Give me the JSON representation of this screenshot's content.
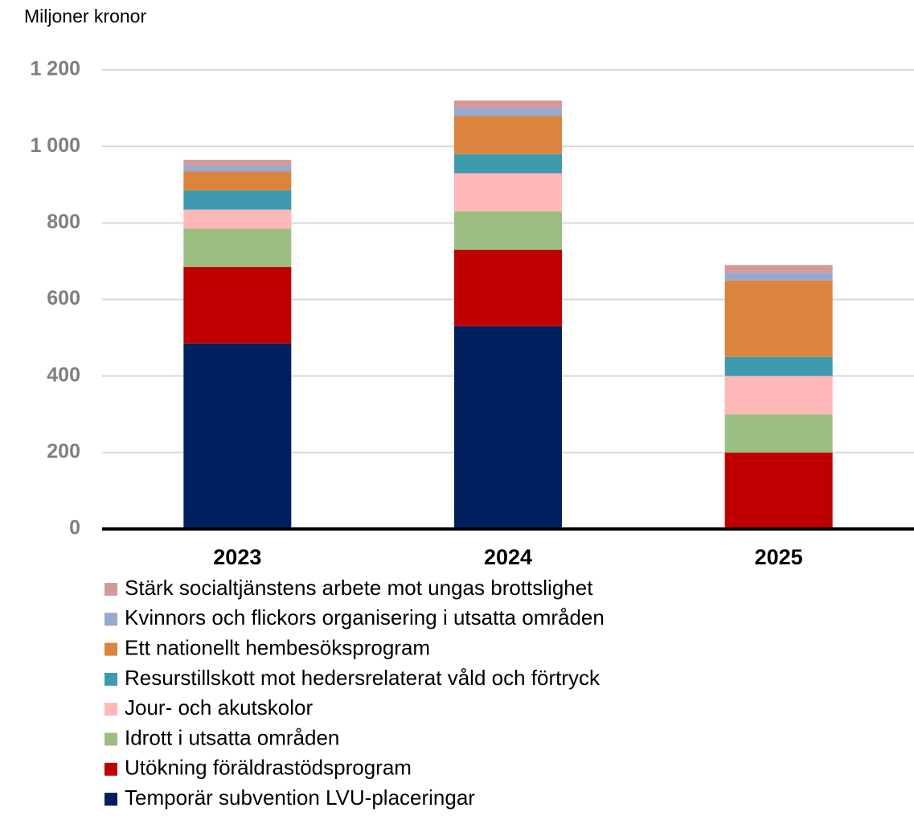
{
  "chart_data": {
    "type": "stacked_bar",
    "y_axis_label": "Miljoner kronor",
    "categories": [
      "2023",
      "2024",
      "2025"
    ],
    "series": [
      {
        "name": "Temporär subvention LVU-placeringar",
        "color": "#002060",
        "values": [
          485,
          530,
          0
        ]
      },
      {
        "name": "Utökning föräldrastödsprogram",
        "color": "#c00000",
        "values": [
          200,
          200,
          200
        ]
      },
      {
        "name": "Idrott i utsatta områden",
        "color": "#9bbf83",
        "values": [
          100,
          100,
          100
        ]
      },
      {
        "name": "Jour- och akutskolor",
        "color": "#ffb7b7",
        "values": [
          50,
          100,
          100
        ]
      },
      {
        "name": "Resurstillskott mot hedersrelaterat våld och förtryck",
        "color": "#3e9aae",
        "values": [
          50,
          50,
          50
        ]
      },
      {
        "name": "Ett nationellt hembesöksprogram",
        "color": "#db843d",
        "values": [
          50,
          100,
          200
        ]
      },
      {
        "name": "Kvinnors och flickors organisering i utsatta områden",
        "color": "#95a9d1",
        "values": [
          15,
          20,
          20
        ]
      },
      {
        "name": "Stärk socialtjänstens arbete mot ungas brottslighet",
        "color": "#d49a9a",
        "values": [
          15,
          20,
          20
        ]
      }
    ],
    "ylim": [
      0,
      1200
    ],
    "yticks": [
      0,
      200,
      400,
      600,
      800,
      {
        "value": 1000,
        "label": "1 000"
      },
      {
        "value": 1200,
        "label": "1 200"
      }
    ],
    "grid": true
  }
}
